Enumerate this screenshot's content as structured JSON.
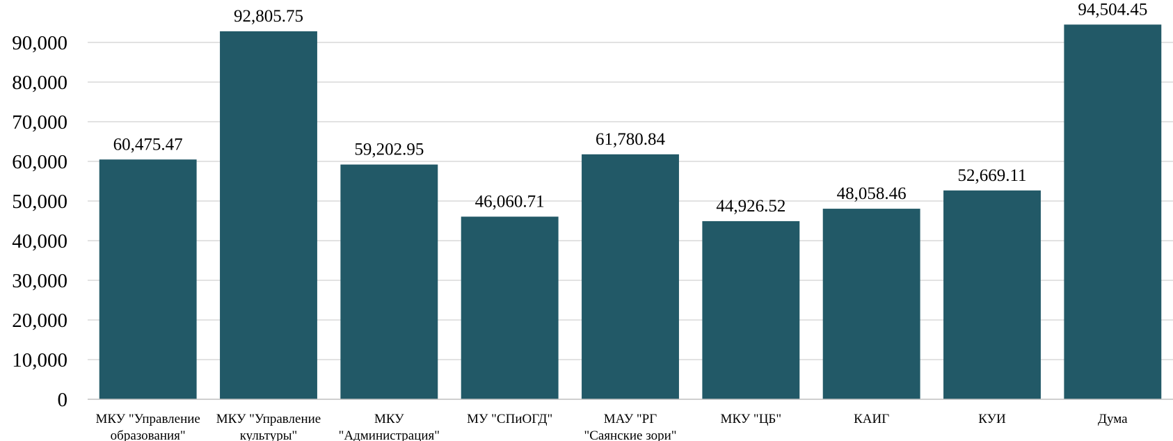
{
  "chart_data": {
    "type": "bar",
    "categories": [
      [
        "МКУ \"Управление",
        "образования\""
      ],
      [
        "МКУ \"Управление",
        "культуры\""
      ],
      [
        "МКУ",
        "\"Администрация\""
      ],
      [
        "МУ \"СПиОГД\""
      ],
      [
        "МАУ \"РГ",
        "\"Саянские зори\""
      ],
      [
        "МКУ \"ЦБ\""
      ],
      [
        "КАИГ"
      ],
      [
        "КУИ"
      ],
      [
        "Дума"
      ]
    ],
    "values": [
      60475.47,
      92805.75,
      59202.95,
      46060.71,
      61780.84,
      44926.52,
      48058.46,
      52669.11,
      94504.45
    ],
    "data_labels": [
      "60,475.47",
      "92,805.75",
      "59,202.95",
      "46,060.71",
      "61,780.84",
      "44,926.52",
      "48,058.46",
      "52,669.11",
      "94,504.45"
    ],
    "y_ticks": [
      0,
      10000,
      20000,
      30000,
      40000,
      50000,
      60000,
      70000,
      80000,
      90000
    ],
    "y_tick_labels": [
      "0",
      "10,000",
      "20,000",
      "30,000",
      "40,000",
      "50,000",
      "60,000",
      "70,000",
      "80,000",
      "90,000"
    ],
    "ylim": [
      0,
      100000
    ],
    "grid": true,
    "bar_color": "#225967"
  }
}
